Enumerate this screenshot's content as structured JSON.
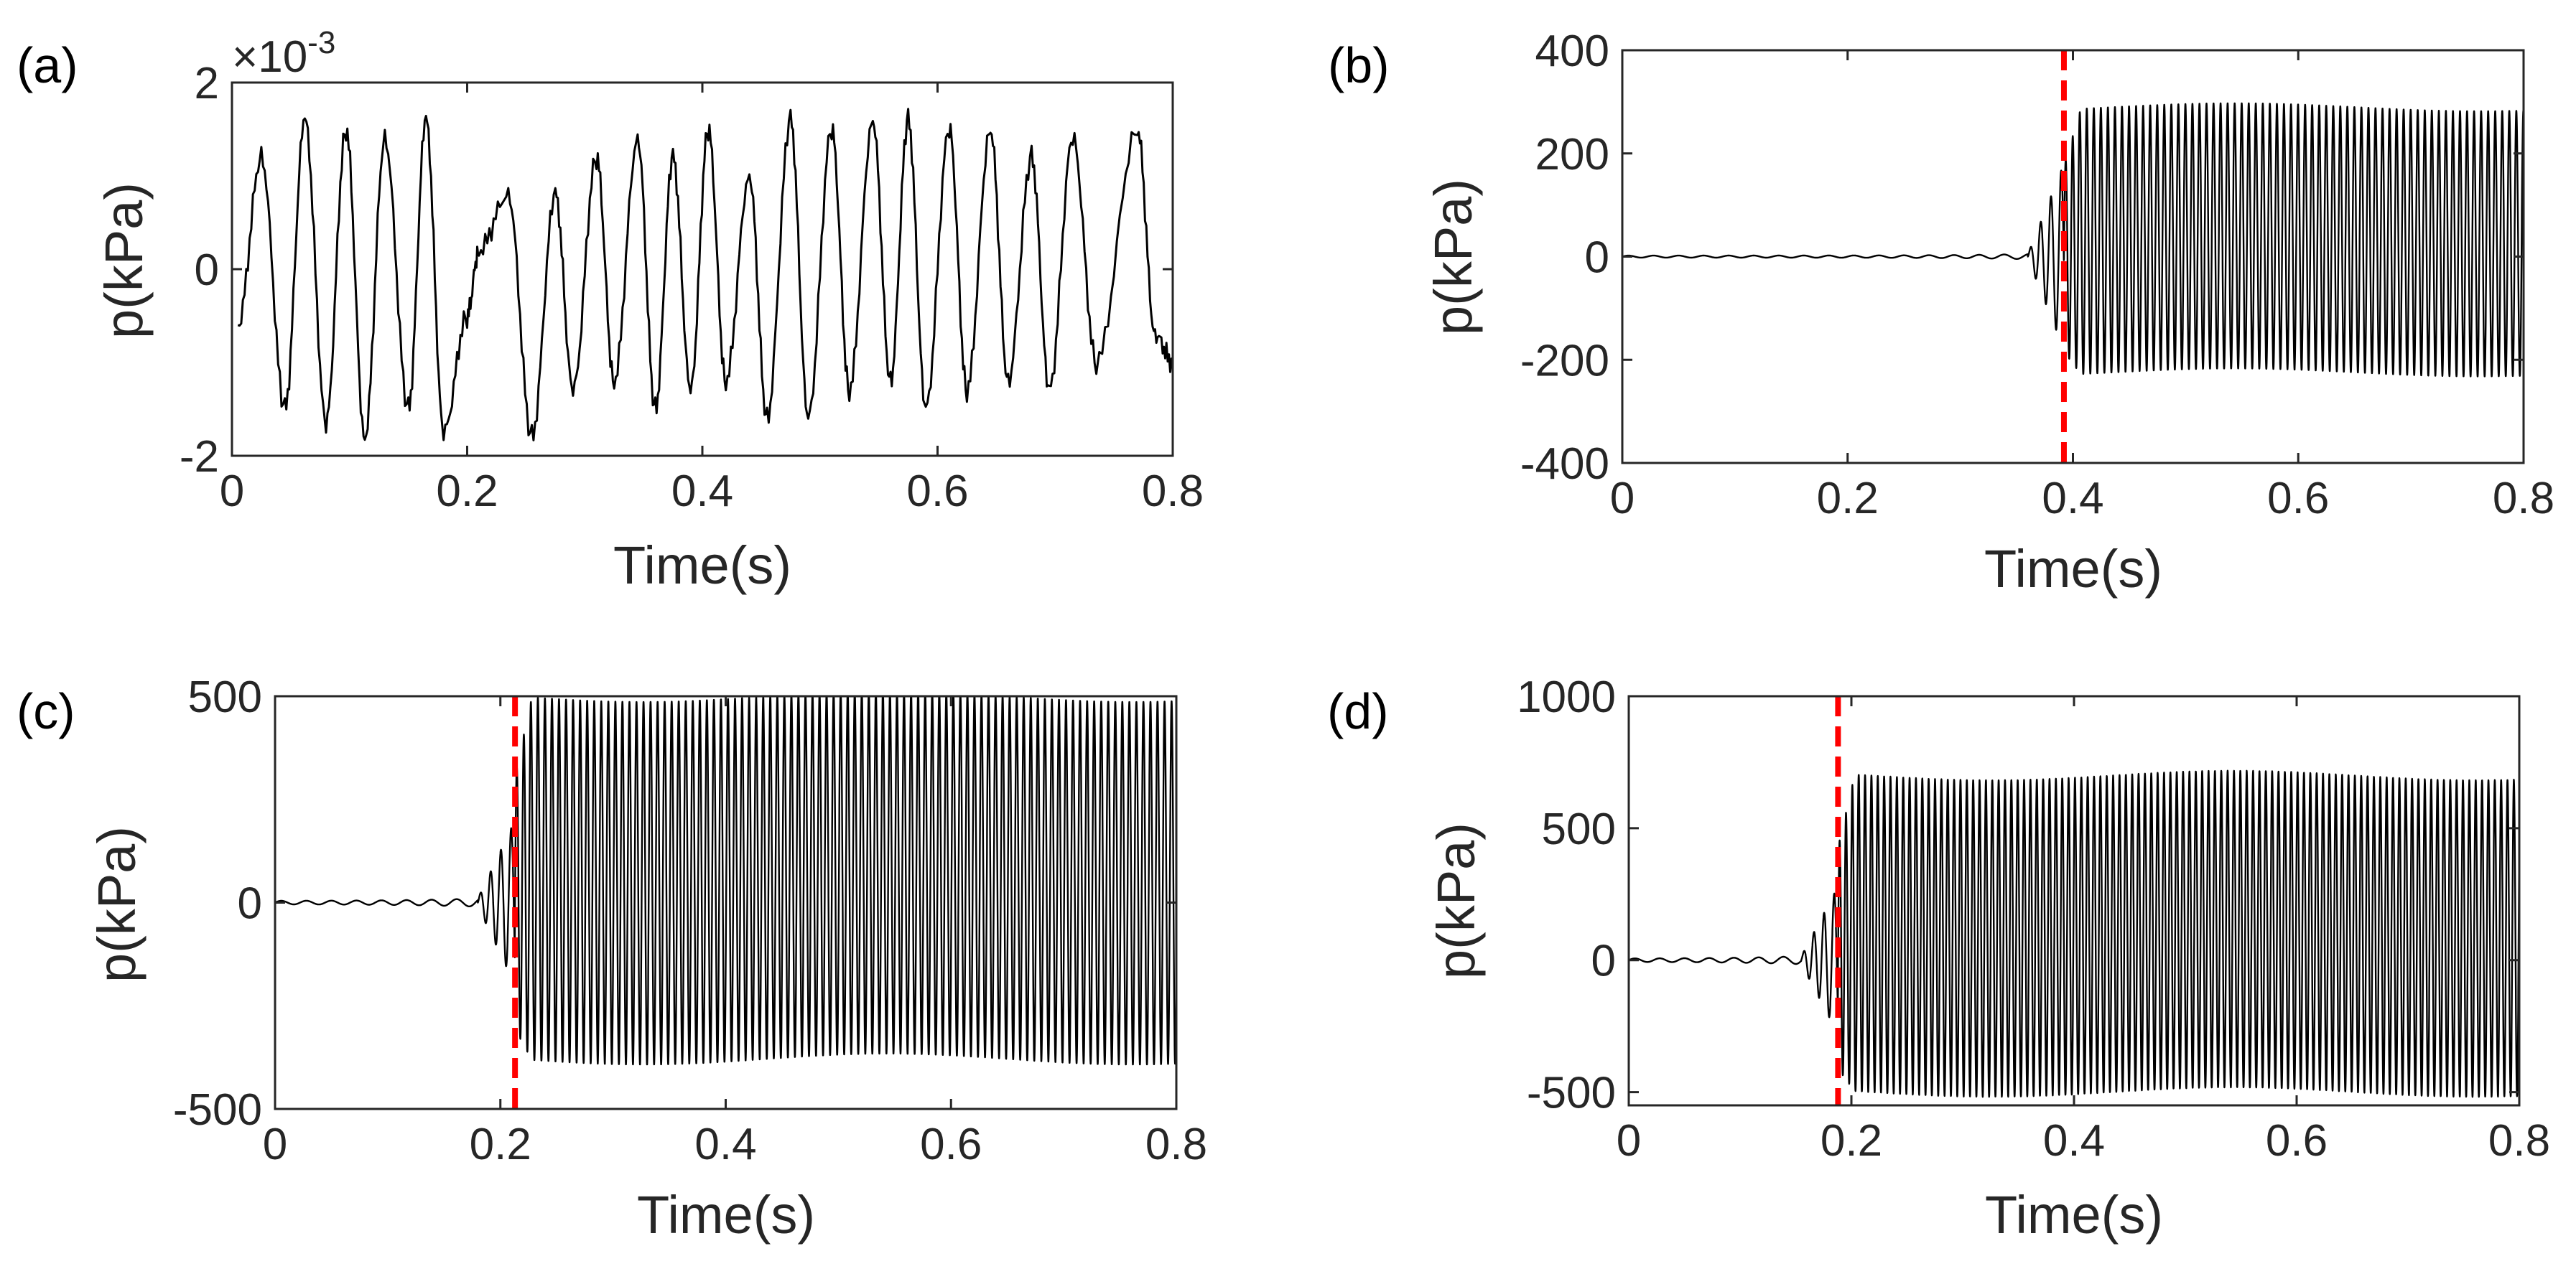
{
  "colors": {
    "line": "#000000",
    "marker_line": "#ff0000",
    "axis": "#262626"
  },
  "chart_data": [
    {
      "id": "a",
      "type": "line",
      "panel_label": "(a)",
      "xlabel": "Time(s)",
      "ylabel": "p(kPa)",
      "xlim": [
        0,
        0.8
      ],
      "ylim": [
        -2,
        2
      ],
      "xticks": [
        0,
        0.2,
        0.4,
        0.6,
        0.8
      ],
      "xtick_labels": [
        "0",
        "0.2",
        "0.4",
        "0.6",
        "0.8"
      ],
      "yticks": [
        -2,
        0,
        2
      ],
      "ytick_labels": [
        "-2",
        "0",
        "2"
      ],
      "y_exponent_base": "×10",
      "y_exponent": "-3",
      "signal": {
        "kind": "irregular",
        "note": "y values in units of 10^-3 kPa",
        "peaks": [
          [
            0.005,
            -0.6
          ],
          [
            0.025,
            1.2
          ],
          [
            0.045,
            -1.5
          ],
          [
            0.062,
            1.6
          ],
          [
            0.08,
            -1.65
          ],
          [
            0.097,
            1.5
          ],
          [
            0.113,
            -1.8
          ],
          [
            0.13,
            1.4
          ],
          [
            0.15,
            -1.5
          ],
          [
            0.165,
            1.6
          ],
          [
            0.18,
            -1.75
          ],
          [
            0.2,
            -0.5
          ],
          [
            0.21,
            0.2
          ],
          [
            0.235,
            0.8
          ],
          [
            0.255,
            -1.8
          ],
          [
            0.275,
            0.8
          ],
          [
            0.29,
            -1.3
          ],
          [
            0.31,
            1.2
          ],
          [
            0.325,
            -1.2
          ],
          [
            0.345,
            1.4
          ],
          [
            0.36,
            -1.5
          ],
          [
            0.375,
            1.2
          ],
          [
            0.39,
            -1.3
          ],
          [
            0.405,
            1.5
          ],
          [
            0.42,
            -1.2
          ],
          [
            0.44,
            1.0
          ],
          [
            0.455,
            -1.6
          ],
          [
            0.475,
            1.6
          ],
          [
            0.49,
            -1.6
          ],
          [
            0.51,
            1.5
          ],
          [
            0.525,
            -1.3
          ],
          [
            0.545,
            1.6
          ],
          [
            0.56,
            -1.2
          ],
          [
            0.575,
            1.6
          ],
          [
            0.59,
            -1.5
          ],
          [
            0.61,
            1.5
          ],
          [
            0.625,
            -1.3
          ],
          [
            0.645,
            1.5
          ],
          [
            0.66,
            -1.2
          ],
          [
            0.68,
            1.2
          ],
          [
            0.695,
            -1.3
          ],
          [
            0.715,
            1.4
          ],
          [
            0.735,
            -1.0
          ],
          [
            0.77,
            1.5
          ],
          [
            0.785,
            -0.7
          ],
          [
            0.8,
            -1.0
          ]
        ]
      }
    },
    {
      "id": "b",
      "type": "line",
      "panel_label": "(b)",
      "xlabel": "Time(s)",
      "ylabel": "p(kPa)",
      "xlim": [
        0,
        0.8
      ],
      "ylim": [
        -400,
        400
      ],
      "xticks": [
        0,
        0.2,
        0.4,
        0.6,
        0.8
      ],
      "xtick_labels": [
        "0",
        "0.2",
        "0.4",
        "0.6",
        "0.8"
      ],
      "yticks": [
        -400,
        -200,
        0,
        200,
        400
      ],
      "ytick_labels": [
        "-400",
        "-200",
        "0",
        "200",
        "400"
      ],
      "onset_time": 0.392,
      "signal": {
        "kind": "onset",
        "pre_amplitude": 5,
        "precursor_time": 0.36,
        "precursor_peak": 180,
        "steady_max": 290,
        "steady_min": -225,
        "frequency_hz": 160
      }
    },
    {
      "id": "c",
      "type": "line",
      "panel_label": "(c)",
      "xlabel": "Time(s)",
      "ylabel": "p(kPa)",
      "xlim": [
        0,
        0.8
      ],
      "ylim": [
        -500,
        500
      ],
      "xticks": [
        0,
        0.2,
        0.4,
        0.6,
        0.8
      ],
      "xtick_labels": [
        "0",
        "0.2",
        "0.4",
        "0.6",
        "0.8"
      ],
      "yticks": [
        -500,
        0,
        500
      ],
      "ytick_labels": [
        "-500",
        "0",
        "500"
      ],
      "onset_time": 0.213,
      "signal": {
        "kind": "onset",
        "pre_amplitude": 10,
        "precursor_time": 0.18,
        "precursor_peak": 200,
        "steady_max": 500,
        "steady_min": -380,
        "frequency_hz": 160
      }
    },
    {
      "id": "d",
      "type": "line",
      "panel_label": "(d)",
      "xlabel": "Time(s)",
      "ylabel": "p(kPa)",
      "xlim": [
        0,
        0.8
      ],
      "ylim": [
        -550,
        1000
      ],
      "xticks": [
        0,
        0.2,
        0.4,
        0.6,
        0.8
      ],
      "xtick_labels": [
        "0",
        "0.2",
        "0.4",
        "0.6",
        "0.8"
      ],
      "yticks": [
        -500,
        0,
        500,
        1000
      ],
      "ytick_labels": [
        "-500",
        "0",
        "500",
        "1000"
      ],
      "onset_time": 0.188,
      "signal": {
        "kind": "onset",
        "pre_amplitude": 15,
        "precursor_time": 0.155,
        "precursor_peak": 280,
        "steady_max": 700,
        "steady_min": -500,
        "frequency_hz": 175
      }
    }
  ]
}
